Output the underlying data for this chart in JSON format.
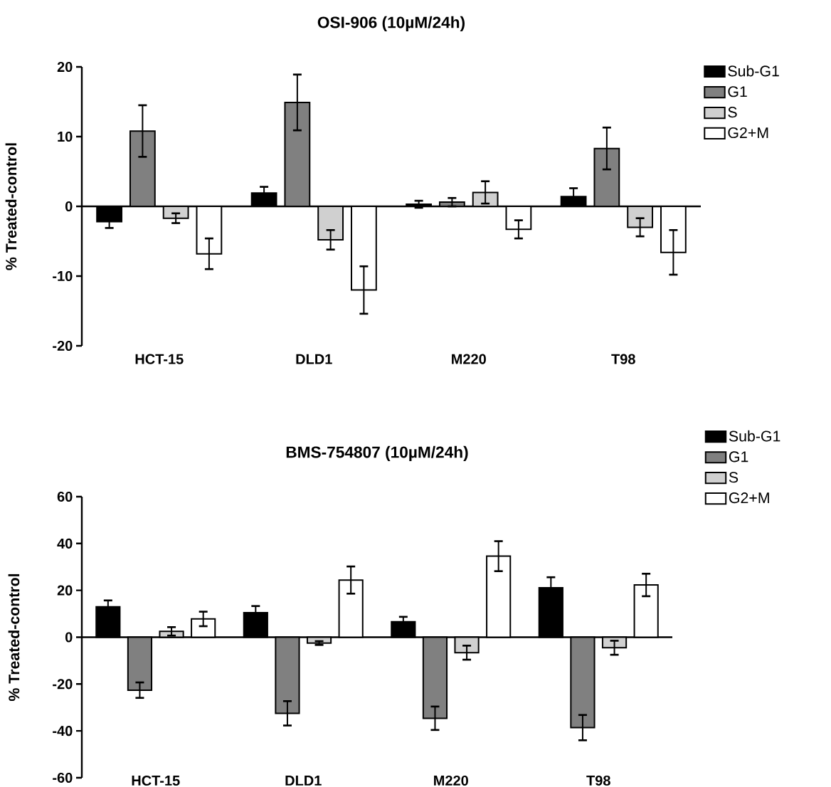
{
  "chart_data": [
    {
      "type": "bar",
      "title": "OSI-906 (10µM/24h)",
      "ylabel": "% Treated-control",
      "categories": [
        "HCT-15",
        "DLD1",
        "M220",
        "T98"
      ],
      "series": [
        {
          "name": "Sub-G1",
          "color": "#000000",
          "values": [
            -2.2,
            1.9,
            0.3,
            1.4
          ],
          "errors": [
            0.9,
            0.9,
            0.5,
            1.2
          ]
        },
        {
          "name": "G1",
          "color": "#808080",
          "values": [
            10.8,
            14.9,
            0.6,
            8.3
          ],
          "errors": [
            3.7,
            4.0,
            0.6,
            3.0
          ]
        },
        {
          "name": "S",
          "color": "#d0d0d0",
          "values": [
            -1.7,
            -4.8,
            2.0,
            -3.0
          ],
          "errors": [
            0.7,
            1.4,
            1.6,
            1.3
          ]
        },
        {
          "name": "G2+M",
          "color": "#ffffff",
          "values": [
            -6.8,
            -12.0,
            -3.3,
            -6.6
          ],
          "errors": [
            2.2,
            3.4,
            1.3,
            3.2
          ]
        }
      ],
      "ylim": [
        -20,
        20
      ],
      "yticks": [
        -20,
        -10,
        0,
        10,
        20
      ],
      "legend": "top right"
    },
    {
      "type": "bar",
      "title": "BMS-754807 (10µM/24h)",
      "ylabel": "% Treated-control",
      "categories": [
        "HCT-15",
        "DLD1",
        "M220",
        "T98"
      ],
      "series": [
        {
          "name": "Sub-G1",
          "color": "#000000",
          "values": [
            13.0,
            10.5,
            6.6,
            21.1
          ],
          "errors": [
            2.7,
            2.8,
            2.1,
            4.5
          ]
        },
        {
          "name": "G1",
          "color": "#808080",
          "values": [
            -22.6,
            -32.5,
            -34.6,
            -38.6
          ],
          "errors": [
            3.3,
            5.2,
            5.0,
            5.4
          ]
        },
        {
          "name": "S",
          "color": "#d0d0d0",
          "values": [
            2.5,
            -2.5,
            -6.6,
            -4.5
          ],
          "errors": [
            1.8,
            0.8,
            3.0,
            3.0
          ]
        },
        {
          "name": "G2+M",
          "color": "#ffffff",
          "values": [
            7.8,
            24.4,
            34.6,
            22.3
          ],
          "errors": [
            3.1,
            5.8,
            6.4,
            4.8
          ]
        }
      ],
      "ylim": [
        -60,
        60
      ],
      "yticks": [
        -60,
        -40,
        -20,
        0,
        20,
        40,
        60
      ],
      "legend": "top right"
    }
  ]
}
